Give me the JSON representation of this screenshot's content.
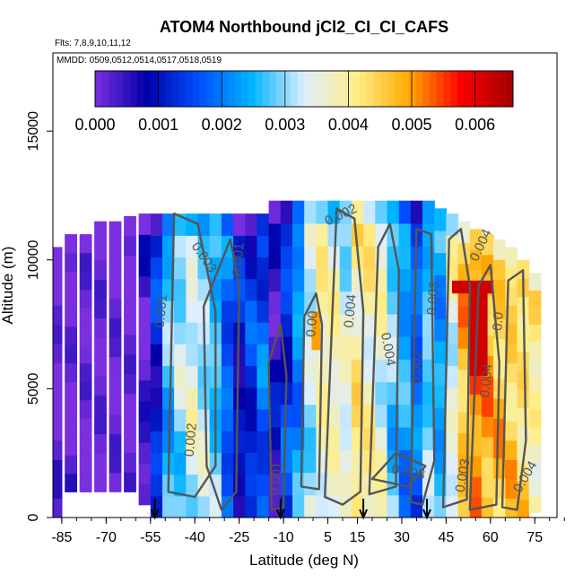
{
  "chart_data": {
    "type": "heatmap",
    "title": "ATOM4 Northbound jCl2_CI_CI_CAFS",
    "flights_note": "Flts: 7,8,9,10,11,12",
    "mmdd_note": "MMDD: 0509,0512,0514,0517,0518,0519",
    "xlabel": "Latitude (deg N)",
    "ylabel": "Altitude (m)",
    "xlim": [
      -85,
      85
    ],
    "ylim": [
      0,
      18000
    ],
    "x_ticks": [
      -85,
      -70,
      -55,
      -40,
      -25,
      -10,
      5,
      15,
      30,
      45,
      60,
      75
    ],
    "x_tick_labels": [
      "-85",
      "-70",
      "-55",
      "-40",
      "-25",
      "-10",
      "5",
      "15",
      "30",
      "45",
      "60",
      "75"
    ],
    "y_ticks": [
      0,
      5000,
      10000,
      15000
    ],
    "y_tick_labels": [
      "0",
      "5000",
      "10000",
      "15000"
    ],
    "colorbar": {
      "range": [
        0,
        0.0066
      ],
      "ticks": [
        0,
        0.001,
        0.002,
        0.003,
        0.004,
        0.005,
        0.006
      ],
      "tick_labels": [
        "0.000",
        "0.001",
        "0.002",
        "0.003",
        "0.004",
        "0.005",
        "0.006"
      ],
      "colors": [
        "#7b2fe0",
        "#0000a8",
        "#0050ff",
        "#00b4ff",
        "#ddeeff",
        "#ffee88",
        "#ffaa00",
        "#ff0000",
        "#a00000"
      ]
    },
    "profile_markers_lat": [
      -53.5,
      -11,
      17,
      38.5
    ],
    "contour_labels": [
      {
        "text": "0.003",
        "lat": -38,
        "alt": 10000,
        "angle": 55
      },
      {
        "text": "0.001",
        "lat": -24,
        "alt": 10000,
        "angle": -85
      },
      {
        "text": "0.001",
        "lat": -50,
        "alt": 8000,
        "angle": -85
      },
      {
        "text": "0.002",
        "lat": -40,
        "alt": 3000,
        "angle": -85
      },
      {
        "text": "0.001",
        "lat": -11,
        "alt": 1500,
        "angle": -85
      },
      {
        "text": "0.002",
        "lat": 10,
        "alt": 11600,
        "angle": -25
      },
      {
        "text": "0.004",
        "lat": 14,
        "alt": 8000,
        "angle": -85
      },
      {
        "text": "0.00",
        "lat": 1,
        "alt": 7500,
        "angle": -85
      },
      {
        "text": "0.004",
        "lat": 24,
        "alt": 6500,
        "angle": 80
      },
      {
        "text": "0.002",
        "lat": 36.5,
        "alt": 5800,
        "angle": -85
      },
      {
        "text": "0.003",
        "lat": 42,
        "alt": 8500,
        "angle": -85
      },
      {
        "text": "0.003",
        "lat": 32,
        "alt": 1600,
        "angle": 10
      },
      {
        "text": "0.004",
        "lat": 58,
        "alt": 10500,
        "angle": -65
      },
      {
        "text": "0.0",
        "lat": 64,
        "alt": 7600,
        "angle": -85
      },
      {
        "text": "0.004",
        "lat": 60,
        "alt": 5300,
        "angle": -85
      },
      {
        "text": "0.003",
        "lat": 52,
        "alt": 1600,
        "angle": -80
      },
      {
        "text": "0.004",
        "lat": 73,
        "alt": 1500,
        "angle": -60
      }
    ],
    "field": [
      {
        "lat": -87,
        "alt_bottom": 0,
        "alt_top": 10500,
        "value": 0.0
      },
      {
        "lat": -82,
        "alt_bottom": 1000,
        "alt_top": 11000,
        "value": 0.0
      },
      {
        "lat": -77,
        "alt_bottom": 1000,
        "alt_top": 11000,
        "value": 0.0
      },
      {
        "lat": -72,
        "alt_bottom": 1000,
        "alt_top": 11500,
        "value": 0.0
      },
      {
        "lat": -67,
        "alt_bottom": 1000,
        "alt_top": 11500,
        "value": 0.0
      },
      {
        "lat": -62,
        "alt_bottom": 1000,
        "alt_top": 11700,
        "value": 0.0
      },
      {
        "lat": -57,
        "alt_bottom": 500,
        "alt_top": 11800,
        "value": 0.0003
      },
      {
        "lat": -53,
        "alt_bottom": 0,
        "alt_top": 11800,
        "value": 0.0012
      },
      {
        "lat": -49,
        "alt_bottom": 0,
        "alt_top": 11800,
        "value": 0.0026
      },
      {
        "lat": -45,
        "alt_bottom": 0,
        "alt_top": 11800,
        "value": 0.003
      },
      {
        "lat": -41,
        "alt_bottom": 0,
        "alt_top": 11800,
        "value": 0.0034
      },
      {
        "lat": -37,
        "alt_bottom": 0,
        "alt_top": 11800,
        "value": 0.0031
      },
      {
        "lat": -33,
        "alt_bottom": 0,
        "alt_top": 11800,
        "value": 0.0027
      },
      {
        "lat": -29,
        "alt_bottom": 0,
        "alt_top": 11800,
        "value": 0.0018
      },
      {
        "lat": -25,
        "alt_bottom": 0,
        "alt_top": 11800,
        "value": 0.001
      },
      {
        "lat": -21,
        "alt_bottom": 0,
        "alt_top": 11800,
        "value": 0.0013
      },
      {
        "lat": -17,
        "alt_bottom": 0,
        "alt_top": 11800,
        "value": 0.0017
      },
      {
        "lat": -13,
        "alt_bottom": 0,
        "alt_top": 12300,
        "value": 0.0006
      },
      {
        "lat": -9,
        "alt_bottom": 0,
        "alt_top": 12300,
        "value": 0.0014
      },
      {
        "lat": -5,
        "alt_bottom": 0,
        "alt_top": 12300,
        "value": 0.0022
      },
      {
        "lat": -1,
        "alt_bottom": 0,
        "alt_top": 12300,
        "value": 0.0032
      },
      {
        "lat": 3,
        "alt_bottom": 0,
        "alt_top": 12300,
        "value": 0.0038
      },
      {
        "lat": 7,
        "alt_bottom": 0,
        "alt_top": 12300,
        "value": 0.0037
      },
      {
        "lat": 11,
        "alt_bottom": 0,
        "alt_top": 12300,
        "value": 0.0034
      },
      {
        "lat": 15,
        "alt_bottom": 0,
        "alt_top": 12300,
        "value": 0.0041
      },
      {
        "lat": 19,
        "alt_bottom": 0,
        "alt_top": 12300,
        "value": 0.0039
      },
      {
        "lat": 23,
        "alt_bottom": 0,
        "alt_top": 12300,
        "value": 0.0036
      },
      {
        "lat": 27,
        "alt_bottom": 0,
        "alt_top": 12300,
        "value": 0.0028
      },
      {
        "lat": 31,
        "alt_bottom": 0,
        "alt_top": 12300,
        "value": 0.0023
      },
      {
        "lat": 35,
        "alt_bottom": 0,
        "alt_top": 12300,
        "value": 0.0018
      },
      {
        "lat": 39,
        "alt_bottom": 0,
        "alt_top": 12300,
        "value": 0.0028
      },
      {
        "lat": 43,
        "alt_bottom": 0,
        "alt_top": 12000,
        "value": 0.0024
      },
      {
        "lat": 47,
        "alt_bottom": 0,
        "alt_top": 11800,
        "value": 0.0035
      },
      {
        "lat": 51,
        "alt_bottom": 0,
        "alt_top": 11500,
        "value": 0.0047
      },
      {
        "lat": 55,
        "alt_bottom": 0,
        "alt_top": 11200,
        "value": 0.0052
      },
      {
        "lat": 59,
        "alt_bottom": 0,
        "alt_top": 11000,
        "value": 0.0048
      },
      {
        "lat": 63,
        "alt_bottom": 0,
        "alt_top": 10800,
        "value": 0.0046
      },
      {
        "lat": 67,
        "alt_bottom": 0,
        "alt_top": 10500,
        "value": 0.0045
      },
      {
        "lat": 71,
        "alt_bottom": 0,
        "alt_top": 10000,
        "value": 0.0043
      },
      {
        "lat": 75,
        "alt_bottom": 200,
        "alt_top": 9500,
        "value": 0.004
      }
    ],
    "hotspots": [
      {
        "lat": 54,
        "alt_bottom": 8700,
        "alt_top": 9200,
        "lat_w": 14,
        "value": 0.0062
      },
      {
        "lat": 56,
        "alt_bottom": 5500,
        "alt_top": 8700,
        "lat_w": 6,
        "value": 0.0062
      },
      {
        "lat": 1,
        "alt_bottom": 6500,
        "alt_top": 8000,
        "lat_w": 3,
        "value": 0.005
      }
    ]
  }
}
